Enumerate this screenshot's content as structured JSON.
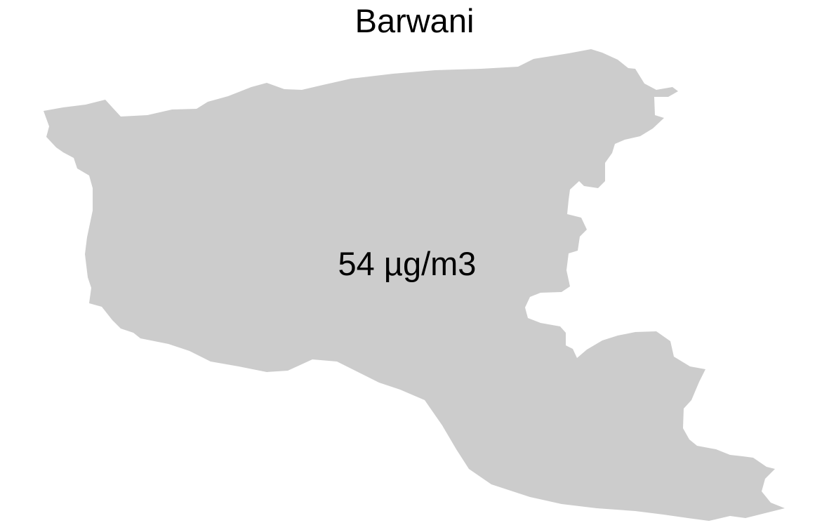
{
  "map": {
    "title": "Barwani",
    "region_name": "Barwani",
    "value_label": "54 µg/m3",
    "fill_color": "#cccccc",
    "background_color": "#ffffff"
  }
}
